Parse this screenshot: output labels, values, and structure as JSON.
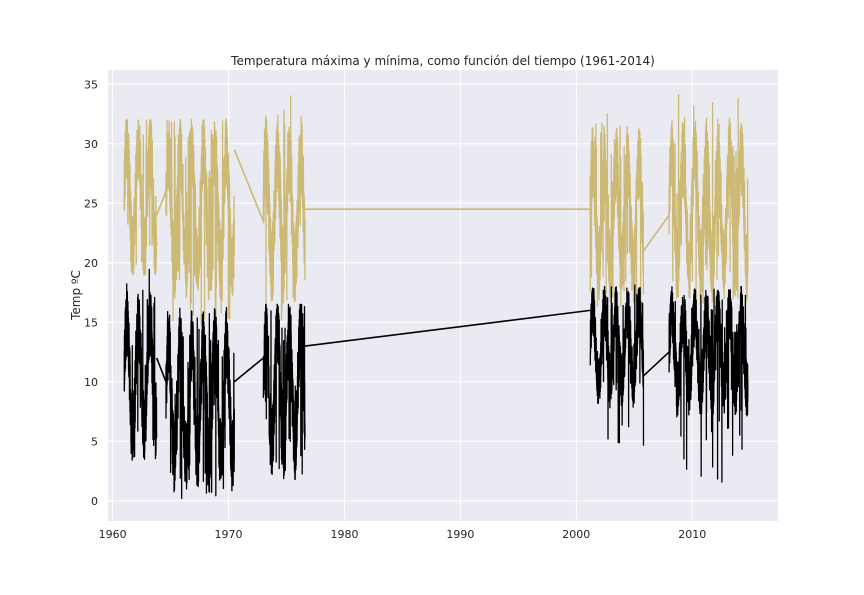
{
  "chart_data": {
    "type": "line",
    "title": "Temperatura máxima y mínima, como función del tiempo (1961-2014)",
    "xlabel": "",
    "ylabel": "Temp ºC",
    "xlim": [
      1959.6,
      2017.4
    ],
    "ylim": [
      -1.7,
      36.2
    ],
    "x_ticks": [
      1960,
      1970,
      1980,
      1990,
      2000,
      2010
    ],
    "x_tick_labels": [
      "1960",
      "1970",
      "1980",
      "1990",
      "2000",
      "2010"
    ],
    "y_ticks": [
      0,
      5,
      10,
      15,
      20,
      25,
      30,
      35
    ],
    "y_tick_labels": [
      "0",
      "5",
      "10",
      "15",
      "20",
      "25",
      "30",
      "35"
    ],
    "grid": true,
    "legend": "none",
    "colors": {
      "background": "#eaeaf2",
      "grid": "#ffffff",
      "max_series": "#ccb974",
      "min_series": "#000000"
    },
    "series": [
      {
        "color": "#ccb974",
        "segments": [
          {
            "start": 1961.0,
            "end": 1963.8,
            "mean": 25.5,
            "amp": 4.5,
            "noise": 2.8,
            "min": 19.0,
            "max": 32.0,
            "seed": 11
          },
          {
            "start": 1964.6,
            "end": 1970.5,
            "mean": 24.5,
            "amp": 4.8,
            "noise": 3.0,
            "min": 14.0,
            "max": 32.5,
            "seed": 23
          },
          {
            "start": 1973.0,
            "end": 1976.6,
            "mean": 24.5,
            "amp": 4.8,
            "noise": 3.2,
            "min": 12.5,
            "max": 34.5,
            "seed": 37
          },
          {
            "start": 2001.2,
            "end": 2005.8,
            "mean": 24.0,
            "amp": 4.5,
            "noise": 3.0,
            "min": 16.0,
            "max": 32.5,
            "seed": 41
          },
          {
            "start": 2008.0,
            "end": 2014.8,
            "mean": 24.5,
            "amp": 4.8,
            "noise": 3.0,
            "min": 16.5,
            "max": 34.2,
            "seed": 53
          }
        ],
        "bridges": [
          [
            1963.8,
            24.0,
            1964.6,
            26.0
          ],
          [
            1970.5,
            29.5,
            1973.0,
            23.5
          ],
          [
            1976.6,
            24.5,
            2001.2,
            24.5
          ],
          [
            2005.8,
            21.0,
            2008.0,
            24.0
          ]
        ]
      },
      {
        "color": "#000000",
        "segments": [
          {
            "start": 1961.0,
            "end": 1963.8,
            "mean": 10.5,
            "amp": 4.5,
            "noise": 2.8,
            "min": 2.0,
            "max": 19.5,
            "seed": 61
          },
          {
            "start": 1964.6,
            "end": 1970.5,
            "mean": 8.5,
            "amp": 4.8,
            "noise": 3.0,
            "min": 0.0,
            "max": 16.5,
            "seed": 73
          },
          {
            "start": 1973.0,
            "end": 1976.6,
            "mean": 9.5,
            "amp": 4.8,
            "noise": 3.0,
            "min": 1.8,
            "max": 16.5,
            "seed": 89
          },
          {
            "start": 2001.2,
            "end": 2005.8,
            "mean": 13.0,
            "amp": 3.0,
            "noise": 2.2,
            "min": 4.0,
            "max": 18.5,
            "seed": 97
          },
          {
            "start": 2008.0,
            "end": 2014.8,
            "mean": 12.5,
            "amp": 3.2,
            "noise": 2.4,
            "min": 1.5,
            "max": 18.0,
            "seed": 109
          }
        ],
        "bridges": [
          [
            1963.8,
            12.0,
            1964.6,
            10.0
          ],
          [
            1970.5,
            10.0,
            1973.0,
            12.0
          ],
          [
            1976.6,
            13.0,
            2001.2,
            16.0
          ],
          [
            2005.8,
            10.5,
            2008.0,
            12.5
          ]
        ]
      }
    ]
  }
}
